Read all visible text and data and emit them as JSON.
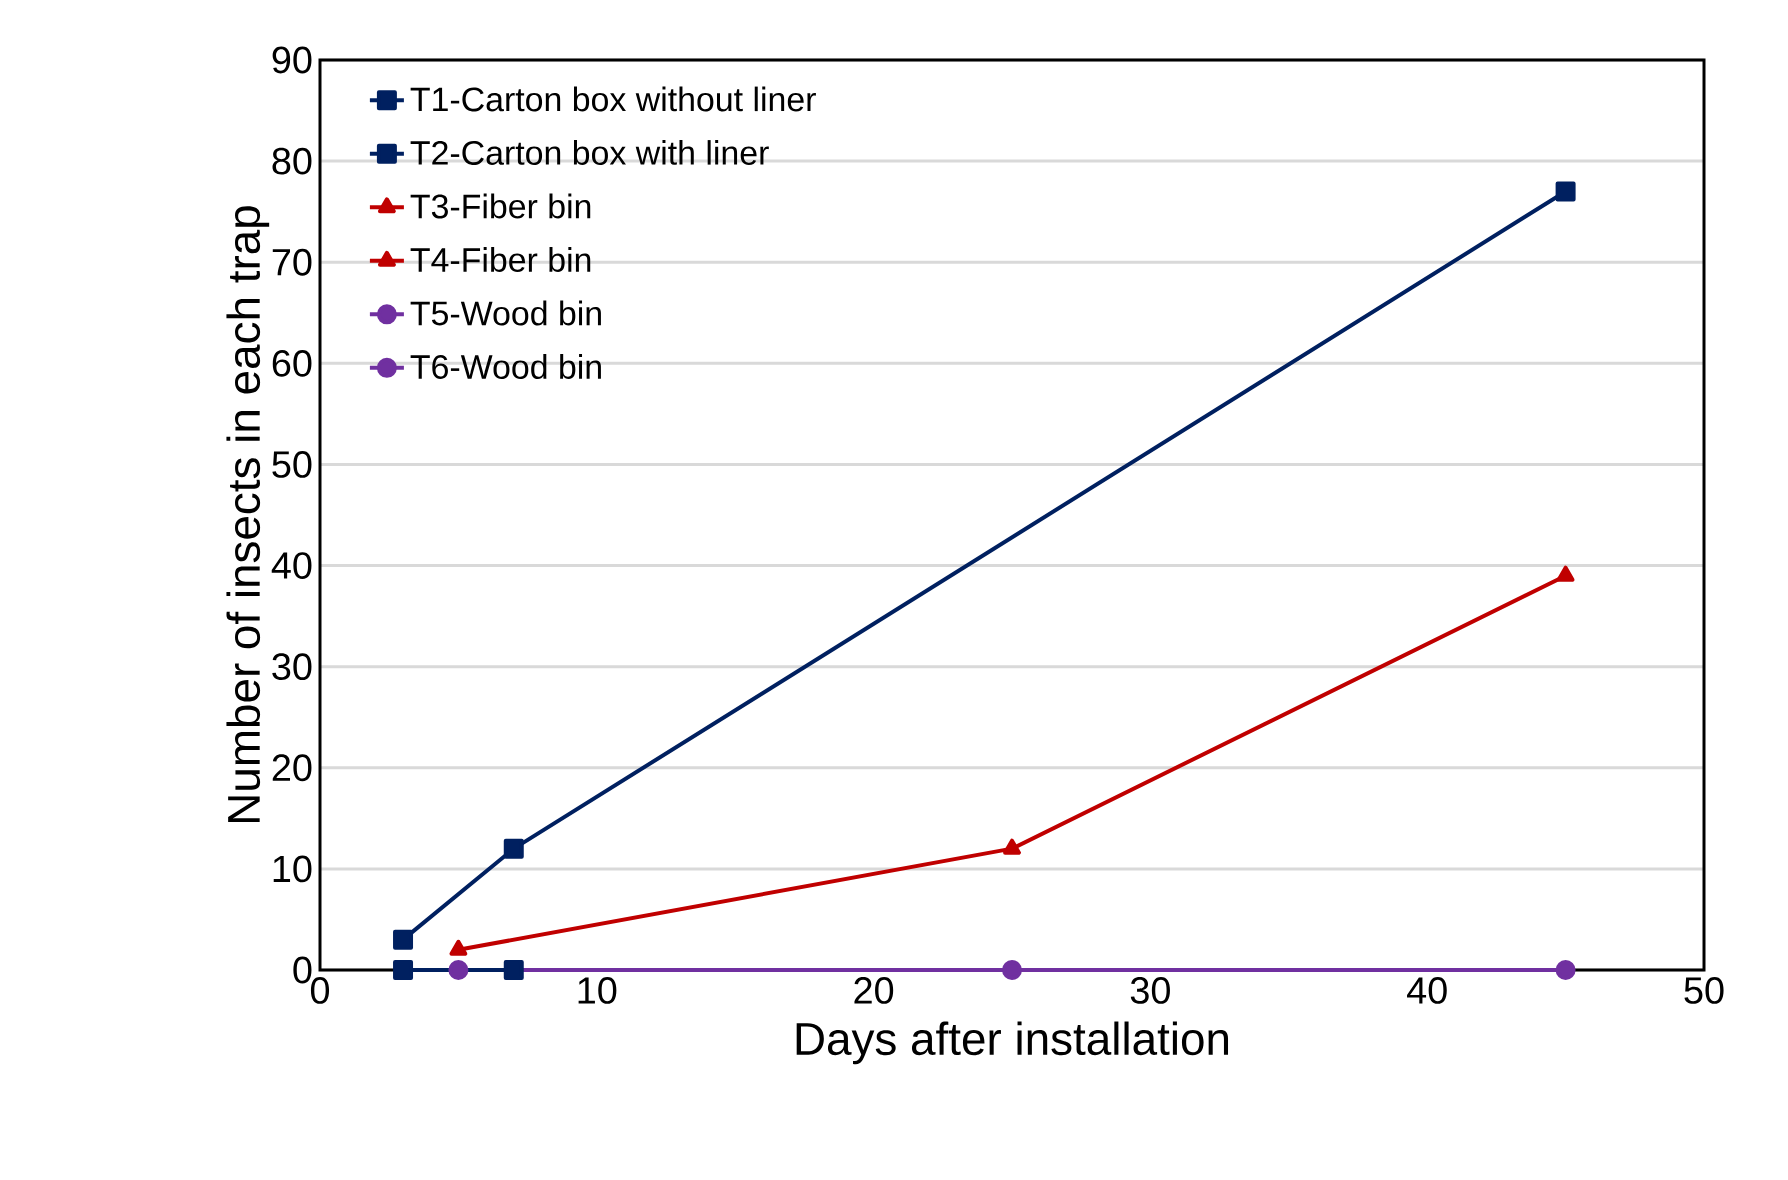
{
  "chart_data": {
    "type": "line",
    "xlabel": "Days after installation",
    "ylabel": "Number of insects in each trap",
    "xlim": [
      0,
      50
    ],
    "xticks": [
      0,
      10,
      20,
      30,
      40,
      50
    ],
    "ylim": [
      0,
      90
    ],
    "yticks": [
      0,
      10,
      20,
      30,
      40,
      50,
      60,
      70,
      80,
      90
    ],
    "grid": "y",
    "legend": "top left",
    "series": [
      {
        "name": "T1-Carton box without liner",
        "color": "#002060",
        "marker": "square",
        "x": [
          3,
          7
        ],
        "values": [
          0,
          0
        ]
      },
      {
        "name": "T2-Carton box with liner",
        "color": "#002060",
        "marker": "square",
        "x": [
          3,
          7,
          45
        ],
        "values": [
          3,
          12,
          77
        ]
      },
      {
        "name": "T3-Fiber bin",
        "color": "#c00000",
        "marker": "triangle",
        "x": [
          5,
          25,
          45
        ],
        "values": [
          2,
          12,
          39
        ]
      },
      {
        "name": "T4-Fiber bin",
        "color": "#c00000",
        "marker": "triangle"
      },
      {
        "name": "T5-Wood bin",
        "color": "#7030a0",
        "marker": "circle",
        "x": [
          5,
          25,
          45
        ],
        "values": [
          0,
          0,
          0
        ]
      },
      {
        "name": "T6-Wood bin",
        "color": "#7030a0",
        "marker": "circle"
      }
    ]
  }
}
